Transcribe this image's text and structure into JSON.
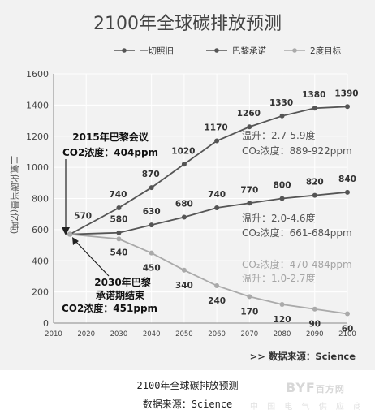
{
  "chart_data": {
    "type": "line",
    "title": "2100年全球碳排放预测",
    "ylabel": "二氧化碳当量(亿吨)",
    "xlim": [
      2010,
      2100
    ],
    "ylim": [
      0,
      1600
    ],
    "x_ticks": [
      "2010",
      "2020",
      "2030",
      "2040",
      "2050",
      "2060",
      "2070",
      "2080",
      "2090",
      "2100"
    ],
    "y_ticks": [
      "0",
      "200",
      "400",
      "600",
      "800",
      "1000",
      "1200",
      "1400",
      "1600"
    ],
    "grid": true,
    "legend": "top",
    "series": [
      {
        "name": "一切照旧",
        "color": "#555555",
        "x": [
          2015,
          2030,
          2040,
          2050,
          2060,
          2070,
          2080,
          2090,
          2100
        ],
        "values": [
          570,
          740,
          870,
          1020,
          1170,
          1260,
          1330,
          1380,
          1390
        ],
        "labels": [
          "570",
          "740",
          "870",
          "1020",
          "1170",
          "1260",
          "1330",
          "1380",
          "1390"
        ]
      },
      {
        "name": "巴黎承诺",
        "color": "#555555",
        "x": [
          2015,
          2030,
          2040,
          2050,
          2060,
          2070,
          2080,
          2090,
          2100
        ],
        "values": [
          570,
          580,
          630,
          680,
          740,
          770,
          800,
          820,
          840
        ],
        "labels": [
          "",
          "580",
          "630",
          "680",
          "740",
          "770",
          "800",
          "820",
          "840"
        ]
      },
      {
        "name": "2度目标",
        "color": "#aaaaaa",
        "x": [
          2015,
          2030,
          2040,
          2050,
          2060,
          2070,
          2080,
          2090,
          2100
        ],
        "values": [
          570,
          540,
          450,
          340,
          240,
          170,
          120,
          90,
          60
        ],
        "labels": [
          "",
          "540",
          "450",
          "340",
          "240",
          "170",
          "120",
          "90",
          "60"
        ]
      }
    ],
    "annotations": {
      "paris_2015": [
        "2015年巴黎会议",
        "CO2浓度：404ppm"
      ],
      "paris_2030": [
        "2030年巴黎",
        "承诺期结束",
        "CO2浓度：451ppm"
      ],
      "bau_range": [
        "温升：2.7-5.9度",
        "CO₂浓度：889-922ppm"
      ],
      "paris_range": [
        "温升：2.0-4.6度",
        "CO₂浓度：661-684ppm"
      ],
      "two_deg_range": [
        "CO₂浓度：470-484ppm",
        "温升：1.0-2.7度"
      ]
    },
    "source": ">>  数据来源：Science"
  },
  "captions": {
    "title": "2100年全球碳排放预测",
    "source": "数据来源：Science"
  },
  "watermark": {
    "logo": "BYF",
    "site": "百方网",
    "tagline": "中 国 电 气 供 应 商"
  }
}
